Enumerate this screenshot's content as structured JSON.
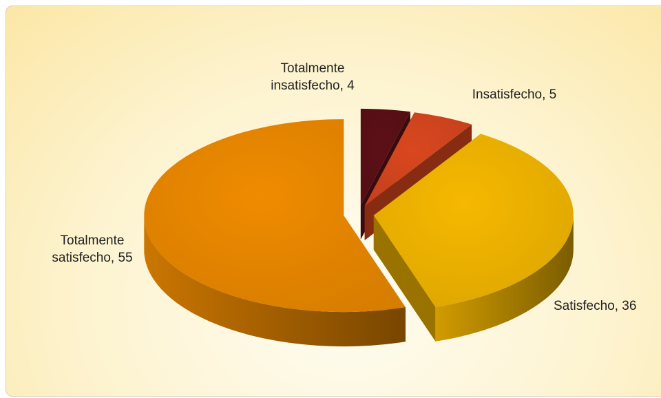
{
  "chart_data": {
    "type": "pie3d",
    "values": [
      4,
      5,
      36,
      55
    ],
    "value_labels": [
      "Totalmente insatisfecho, 4",
      "Insatisfecho, 5",
      "Satisfecho, 36",
      "Totalmente satisfecho, 55"
    ],
    "colors": [
      "#5c1016",
      "#d9471f",
      "#f6b800",
      "#ef8b00"
    ],
    "start_angle": 0,
    "direction": "clockwise",
    "exploded": true
  }
}
